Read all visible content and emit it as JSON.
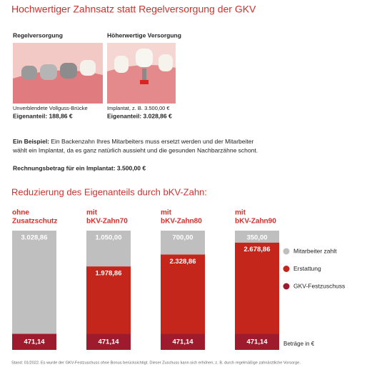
{
  "header": {
    "title": "Hochwertiger Zahnsatz statt Regelversorgung der GKV"
  },
  "options": [
    {
      "title": "Regelversorgung",
      "caption": "Unverblendete Vollguss-Brücke",
      "share": "Eigenanteil: 188,86 €"
    },
    {
      "title": "Höherwertige Versorgung",
      "caption": "Implantat, z. B. 3.500,00 €",
      "share": "Eigenanteil: 3.028,86 €"
    }
  ],
  "example": {
    "lead": "Ein Beispiel:",
    "line1": " Ein Backenzahn Ihres Mitarbeiters muss ersetzt werden und der Mitarbeiter",
    "line2": "wählt ein Implantat, da es ganz natürlich aussieht und die gesunden Nachbarzähne schont.",
    "invoice": "Rechnungsbetrag für ein Implantat:  3.500,00 €"
  },
  "chart_data": {
    "type": "stacked-bar",
    "title": "Reduzierung des Eigenanteils durch bKV-Zahn:",
    "categories": [
      [
        "ohne",
        "Zusatzschutz"
      ],
      [
        "mit",
        "bKV-Zahn70"
      ],
      [
        "mit",
        "bKV-Zahn80"
      ],
      [
        "mit",
        "bKV-Zahn90"
      ]
    ],
    "series": [
      {
        "name": "Mitarbeiter zahlt",
        "color": "#bfbfbf",
        "values": [
          3028.86,
          1050,
          700,
          350
        ],
        "value_labels": [
          "3.028,86",
          "1.050,00",
          "700,00",
          "350,00"
        ]
      },
      {
        "name": "Erstattung",
        "color": "#c4261b",
        "values": [
          null,
          1978.86,
          2328.86,
          2678.86
        ],
        "value_labels": [
          null,
          "1.978,86",
          "2.328,86",
          "2.678,86"
        ]
      },
      {
        "name": "GKV-Festzuschuss",
        "color": "#9e1b2e",
        "values": [
          471.14,
          471.14,
          471.14,
          471.14
        ],
        "value_labels": [
          "471,14",
          "471,14",
          "471,14",
          "471,14"
        ]
      }
    ],
    "unit_note": "Beträge in €"
  },
  "footer": "Stand: 01/2022. Es wurde der GKV-Festzuschuss ohne Bonus berücksichtigt. Dieser Zuschuss kann sich erhöhen, z. B. durch regelmäßige zahnärztliche Vorsorge."
}
